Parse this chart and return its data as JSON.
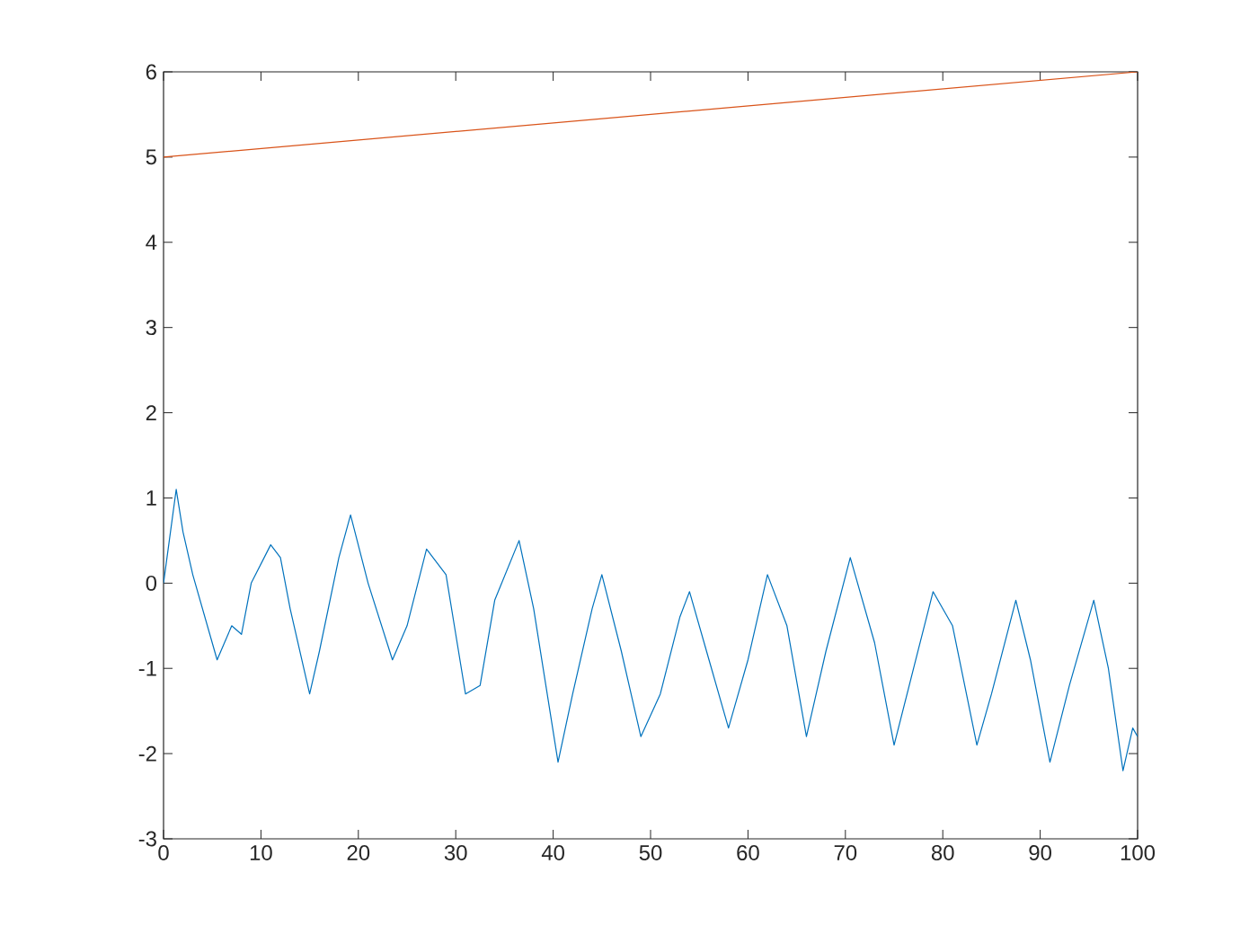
{
  "chart_data": {
    "type": "line",
    "xlim": [
      0,
      100
    ],
    "ylim": [
      -3,
      6
    ],
    "xticks": [
      0,
      10,
      20,
      30,
      40,
      50,
      60,
      70,
      80,
      90,
      100
    ],
    "yticks": [
      -3,
      -2,
      -1,
      0,
      1,
      2,
      3,
      4,
      5,
      6
    ],
    "grid": false,
    "series": [
      {
        "color": "#0072bd",
        "x": [
          0,
          1.3,
          2,
          3,
          5.5,
          7,
          8,
          9,
          11,
          12,
          13,
          15,
          16,
          18,
          19.2,
          21,
          23.5,
          25,
          27,
          29,
          31,
          32.5,
          34,
          36.5,
          38,
          40.5,
          42,
          44,
          45,
          47,
          49,
          51,
          53,
          54,
          56,
          58,
          60,
          62,
          64,
          66,
          68,
          70.5,
          73,
          75,
          77,
          79,
          81,
          83.5,
          85,
          87.5,
          89,
          91,
          93,
          95.5,
          97,
          98.5,
          99.5,
          100
        ],
        "values": [
          0.0,
          1.1,
          0.6,
          0.1,
          -0.9,
          -0.5,
          -0.6,
          0.0,
          0.45,
          0.3,
          -0.3,
          -1.3,
          -0.8,
          0.3,
          0.8,
          0.0,
          -0.9,
          -0.5,
          0.4,
          0.1,
          -1.3,
          -1.2,
          -0.2,
          0.5,
          -0.3,
          -2.1,
          -1.3,
          -0.3,
          0.1,
          -0.8,
          -1.8,
          -1.3,
          -0.4,
          -0.1,
          -0.9,
          -1.7,
          -0.9,
          0.1,
          -0.5,
          -1.8,
          -0.8,
          0.3,
          -0.7,
          -1.9,
          -1.0,
          -0.1,
          -0.5,
          -1.9,
          -1.3,
          -0.2,
          -0.9,
          -2.1,
          -1.2,
          -0.2,
          -1.0,
          -2.2,
          -1.7,
          -1.8
        ]
      },
      {
        "color": "#d95319",
        "x": [
          0,
          100
        ],
        "values": [
          5,
          6
        ]
      }
    ]
  }
}
